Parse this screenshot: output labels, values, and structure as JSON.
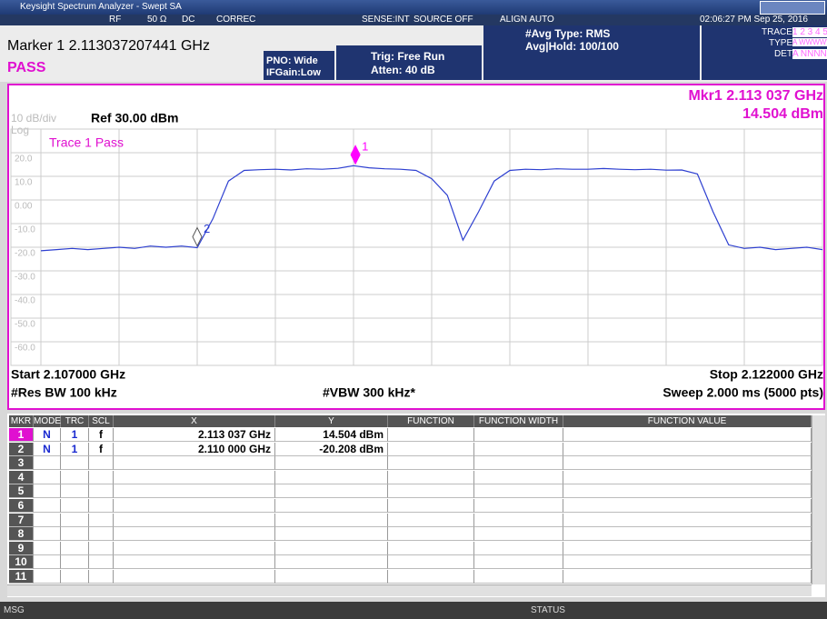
{
  "window": {
    "title": "Keysight Spectrum Analyzer - Swept SA"
  },
  "status_bar": {
    "rf": "RF",
    "impedance": "50 Ω",
    "coupling": "DC",
    "correc": "CORREC",
    "sense": "SENSE:INT",
    "source": "SOURCE OFF",
    "align": "ALIGN AUTO",
    "datetime": "02:06:27 PM Sep 25, 2016"
  },
  "header": {
    "marker": "Marker 1 2.113037207441 GHz",
    "pass": "PASS",
    "pno": "PNO: Wide",
    "ifgain": "IFGain:Low",
    "trig": "Trig: Free Run",
    "atten": "Atten: 40 dB",
    "avg_type": "#Avg Type: RMS",
    "avg_hold": "Avg|Hold: 100/100",
    "trace_label": "TRACE",
    "trace_nums": "1 2 3 4 5 6",
    "type_label": "TYPE",
    "type_value": "A WWWWW",
    "det_label": "DET",
    "det_value": "A NNNNN"
  },
  "plot": {
    "type": "line",
    "mkr_readout": "Mkr1 2.113 037 GHz",
    "mkr_value": "14.504 dBm",
    "scale": "10 dB/div",
    "log": "Log",
    "ref": "Ref 30.00 dBm",
    "limit_status": "Trace 1 Pass",
    "start": "Start 2.107000 GHz",
    "stop": "Stop 2.122000 GHz",
    "rbw": "#Res BW 100 kHz",
    "vbw": "#VBW 300 kHz*",
    "sweep": "Sweep  2.000 ms (5000 pts)",
    "color": "#2d3fd0",
    "marker_color": "#ff00ff",
    "xlim": [
      2.107,
      2.122
    ],
    "ylim": [
      -70,
      30
    ],
    "xticks": [
      2.107,
      2.1085,
      2.11,
      2.1115,
      2.113,
      2.1145,
      2.116,
      2.1175,
      2.119,
      2.1205,
      2.122
    ],
    "yticks": [
      {
        "value": 20,
        "label": "20.0"
      },
      {
        "value": 10,
        "label": "10.0"
      },
      {
        "value": 0,
        "label": "0.00"
      },
      {
        "value": -10,
        "label": "-10.0"
      },
      {
        "value": -20,
        "label": "-20.0"
      },
      {
        "value": -30,
        "label": "-30.0"
      },
      {
        "value": -40,
        "label": "-40.0"
      },
      {
        "value": -50,
        "label": "-50.0"
      },
      {
        "value": -60,
        "label": "-60.0"
      }
    ],
    "x": [
      2.107,
      2.1073,
      2.1076,
      2.1079,
      2.1082,
      2.1085,
      2.1088,
      2.1091,
      2.1094,
      2.1097,
      2.11,
      2.1103,
      2.1106,
      2.1109,
      2.1112,
      2.1115,
      2.1118,
      2.1121,
      2.1124,
      2.1127,
      2.113,
      2.1133,
      2.1136,
      2.1139,
      2.1142,
      2.1145,
      2.1148,
      2.1151,
      2.1154,
      2.1157,
      2.116,
      2.1163,
      2.1166,
      2.1169,
      2.1172,
      2.1175,
      2.1178,
      2.1181,
      2.1184,
      2.1187,
      2.119,
      2.1193,
      2.1196,
      2.1199,
      2.1202,
      2.1205,
      2.1208,
      2.1211,
      2.1214,
      2.1217,
      2.122
    ],
    "values": [
      -21.5,
      -21,
      -20.5,
      -21,
      -20.5,
      -20,
      -20.5,
      -19.5,
      -20,
      -19.5,
      -20.2,
      -8,
      8,
      12.5,
      12.8,
      13,
      12.7,
      13.2,
      13,
      13.4,
      14.5,
      13.6,
      13.2,
      13,
      12.5,
      9,
      2,
      -17,
      -5,
      8,
      12.5,
      13,
      12.8,
      13.2,
      13,
      13,
      13.3,
      13,
      12.8,
      13,
      12.6,
      12.7,
      11,
      -5,
      -19,
      -20.5,
      -20,
      -21,
      -20.5,
      -20,
      -21
    ],
    "markers": [
      {
        "label": "1",
        "x": 2.113037,
        "y": 14.504
      },
      {
        "label": "2",
        "x": 2.11,
        "y": -20.208
      }
    ]
  },
  "table": {
    "headers": [
      "MKR",
      "MODE",
      "TRC",
      "SCL",
      "X",
      "Y",
      "FUNCTION",
      "FUNCTION WIDTH",
      "FUNCTION VALUE"
    ],
    "rows": [
      {
        "mkr": "1",
        "mode": "N",
        "trc": "1",
        "scl": "f",
        "x": "2.113 037 GHz",
        "y": "14.504 dBm"
      },
      {
        "mkr": "2",
        "mode": "N",
        "trc": "1",
        "scl": "f",
        "x": "2.110 000 GHz",
        "y": "-20.208 dBm"
      },
      {
        "mkr": "3"
      },
      {
        "mkr": "4"
      },
      {
        "mkr": "5"
      },
      {
        "mkr": "6"
      },
      {
        "mkr": "7"
      },
      {
        "mkr": "8"
      },
      {
        "mkr": "9"
      },
      {
        "mkr": "10"
      },
      {
        "mkr": "11"
      }
    ]
  },
  "footer": {
    "msg": "MSG",
    "status": "STATUS"
  }
}
